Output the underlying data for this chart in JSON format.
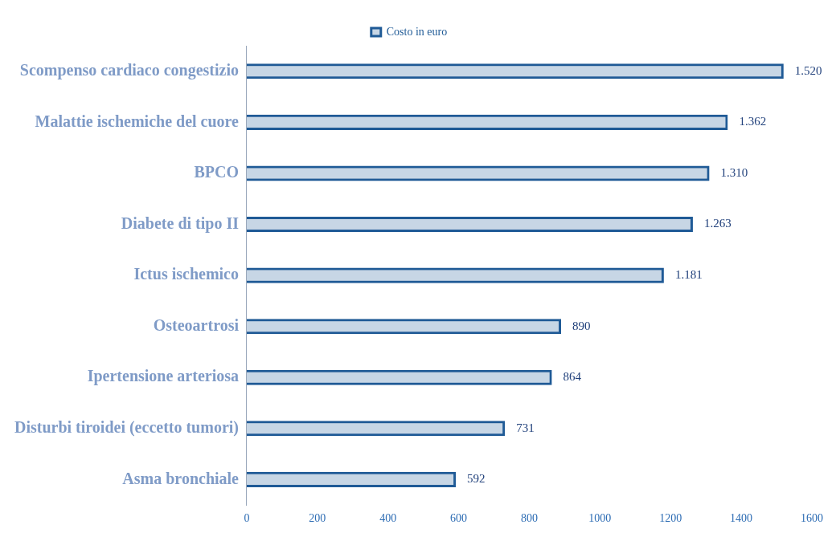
{
  "chart_data": {
    "type": "bar",
    "orientation": "horizontal",
    "categories": [
      "Scompenso cardiaco congestizio",
      "Malattie ischemiche del cuore",
      "BPCO",
      "Diabete di tipo II",
      "Ictus ischemico",
      "Osteoartrosi",
      "Ipertensione arteriosa",
      "Disturbi tiroidei (eccetto tumori)",
      "Asma bronchiale"
    ],
    "series": [
      {
        "name": "Costo in euro",
        "color": "#1f5a96",
        "values": [
          1520,
          1362,
          1310,
          1263,
          1181,
          890,
          864,
          731,
          592
        ],
        "value_labels": [
          "1.520",
          "1.362",
          "1.310",
          "1.263",
          "1.181",
          "890",
          "864",
          "731",
          "592"
        ]
      }
    ],
    "xlim": [
      0,
      1600
    ],
    "xticks": [
      0,
      200,
      400,
      600,
      800,
      1000,
      1200,
      1400,
      1600
    ],
    "grid": false,
    "legend": "top"
  }
}
